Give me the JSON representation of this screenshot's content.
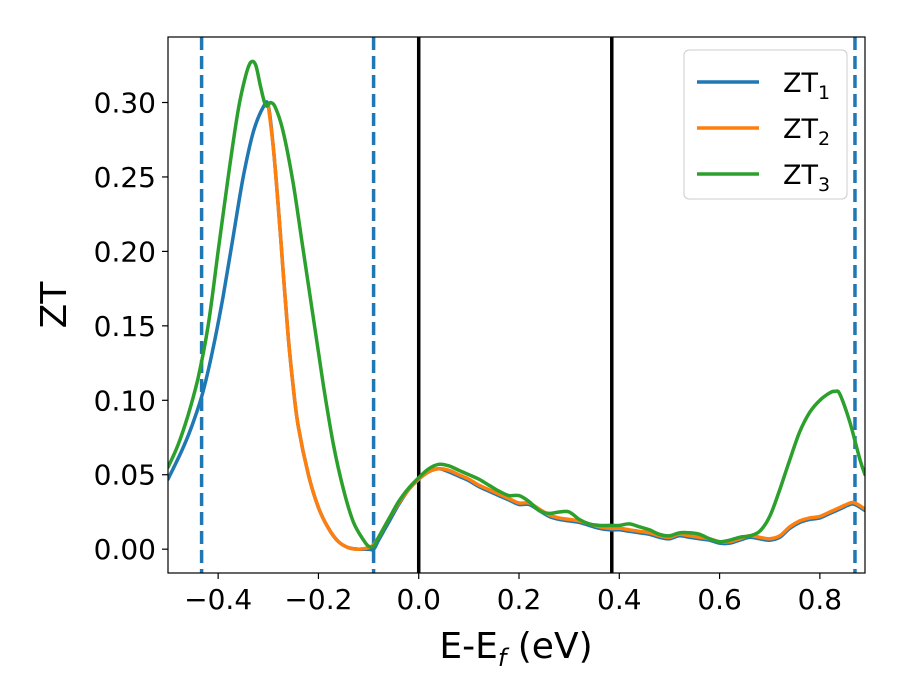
{
  "chart_data": {
    "type": "line",
    "title": "",
    "xlabel_main": "E-E",
    "xlabel_sub": "f",
    "xlabel_unit": " (eV)",
    "ylabel": "ZT",
    "xlim": [
      -0.5,
      0.89
    ],
    "ylim": [
      -0.016,
      0.344
    ],
    "xticks": [
      -0.4,
      -0.2,
      0.0,
      0.2,
      0.4,
      0.6,
      0.8
    ],
    "xtick_labels": [
      "−0.4",
      "−0.2",
      "0.0",
      "0.2",
      "0.4",
      "0.6",
      "0.8"
    ],
    "yticks": [
      0.0,
      0.05,
      0.1,
      0.15,
      0.2,
      0.25,
      0.3
    ],
    "ytick_labels": [
      "0.00",
      "0.05",
      "0.10",
      "0.15",
      "0.20",
      "0.25",
      "0.30"
    ],
    "grid": false,
    "legend_position": "top-right",
    "vlines_dashed": {
      "color": "#1f77b4",
      "x": [
        -0.433,
        -0.09,
        0.87
      ]
    },
    "vlines_solid": {
      "color": "#000000",
      "x": [
        0.0,
        0.385
      ]
    },
    "series": [
      {
        "name_main": "ZT",
        "name_sub": "1",
        "color": "#1f77b4",
        "points": [
          [
            -0.5,
            0.047
          ],
          [
            -0.47,
            0.068
          ],
          [
            -0.45,
            0.085
          ],
          [
            -0.43,
            0.106
          ],
          [
            -0.41,
            0.135
          ],
          [
            -0.39,
            0.17
          ],
          [
            -0.37,
            0.21
          ],
          [
            -0.35,
            0.25
          ],
          [
            -0.33,
            0.28
          ],
          [
            -0.31,
            0.297
          ],
          [
            -0.3,
            0.298
          ],
          [
            -0.29,
            0.27
          ],
          [
            -0.28,
            0.23
          ],
          [
            -0.27,
            0.185
          ],
          [
            -0.26,
            0.142
          ],
          [
            -0.25,
            0.108
          ],
          [
            -0.24,
            0.082
          ],
          [
            -0.22,
            0.05
          ],
          [
            -0.2,
            0.028
          ],
          [
            -0.18,
            0.014
          ],
          [
            -0.16,
            0.005
          ],
          [
            -0.14,
            0.001
          ],
          [
            -0.12,
            0.0
          ],
          [
            -0.1,
            0.0
          ],
          [
            -0.09,
            0.0
          ],
          [
            -0.08,
            0.006
          ],
          [
            -0.06,
            0.018
          ],
          [
            -0.04,
            0.03
          ],
          [
            -0.02,
            0.04
          ],
          [
            0.0,
            0.047
          ],
          [
            0.02,
            0.052
          ],
          [
            0.04,
            0.054
          ],
          [
            0.06,
            0.052
          ],
          [
            0.08,
            0.049
          ],
          [
            0.1,
            0.046
          ],
          [
            0.12,
            0.042
          ],
          [
            0.14,
            0.039
          ],
          [
            0.16,
            0.036
          ],
          [
            0.18,
            0.033
          ],
          [
            0.2,
            0.03
          ],
          [
            0.22,
            0.03
          ],
          [
            0.24,
            0.026
          ],
          [
            0.26,
            0.022
          ],
          [
            0.28,
            0.02
          ],
          [
            0.3,
            0.019
          ],
          [
            0.32,
            0.018
          ],
          [
            0.34,
            0.016
          ],
          [
            0.36,
            0.014
          ],
          [
            0.38,
            0.013
          ],
          [
            0.4,
            0.013
          ],
          [
            0.42,
            0.012
          ],
          [
            0.44,
            0.011
          ],
          [
            0.46,
            0.01
          ],
          [
            0.48,
            0.008
          ],
          [
            0.5,
            0.007
          ],
          [
            0.52,
            0.009
          ],
          [
            0.54,
            0.008
          ],
          [
            0.56,
            0.007
          ],
          [
            0.58,
            0.006
          ],
          [
            0.6,
            0.004
          ],
          [
            0.62,
            0.004
          ],
          [
            0.64,
            0.006
          ],
          [
            0.66,
            0.008
          ],
          [
            0.68,
            0.007
          ],
          [
            0.7,
            0.006
          ],
          [
            0.72,
            0.008
          ],
          [
            0.74,
            0.014
          ],
          [
            0.76,
            0.018
          ],
          [
            0.78,
            0.02
          ],
          [
            0.8,
            0.021
          ],
          [
            0.82,
            0.024
          ],
          [
            0.84,
            0.027
          ],
          [
            0.86,
            0.03
          ],
          [
            0.87,
            0.03
          ],
          [
            0.89,
            0.026
          ]
        ]
      },
      {
        "name_main": "ZT",
        "name_sub": "2",
        "color": "#ff7f0e",
        "points": [
          [
            -0.3,
            0.298
          ],
          [
            -0.29,
            0.27
          ],
          [
            -0.28,
            0.23
          ],
          [
            -0.27,
            0.185
          ],
          [
            -0.26,
            0.142
          ],
          [
            -0.25,
            0.108
          ],
          [
            -0.24,
            0.082
          ],
          [
            -0.22,
            0.05
          ],
          [
            -0.2,
            0.028
          ],
          [
            -0.18,
            0.014
          ],
          [
            -0.16,
            0.005
          ],
          [
            -0.14,
            0.001
          ],
          [
            -0.12,
            0.0
          ],
          [
            -0.1,
            0.001
          ],
          [
            -0.09,
            0.003
          ],
          [
            -0.08,
            0.008
          ],
          [
            -0.06,
            0.02
          ],
          [
            -0.04,
            0.031
          ],
          [
            -0.02,
            0.04
          ],
          [
            0.0,
            0.047
          ],
          [
            0.02,
            0.052
          ],
          [
            0.04,
            0.054
          ],
          [
            0.06,
            0.053
          ],
          [
            0.08,
            0.05
          ],
          [
            0.1,
            0.047
          ],
          [
            0.12,
            0.043
          ],
          [
            0.14,
            0.04
          ],
          [
            0.16,
            0.037
          ],
          [
            0.18,
            0.034
          ],
          [
            0.2,
            0.031
          ],
          [
            0.22,
            0.031
          ],
          [
            0.24,
            0.027
          ],
          [
            0.26,
            0.023
          ],
          [
            0.28,
            0.021
          ],
          [
            0.3,
            0.02
          ],
          [
            0.32,
            0.019
          ],
          [
            0.34,
            0.017
          ],
          [
            0.36,
            0.015
          ],
          [
            0.38,
            0.014
          ],
          [
            0.4,
            0.014
          ],
          [
            0.42,
            0.013
          ],
          [
            0.44,
            0.012
          ],
          [
            0.46,
            0.011
          ],
          [
            0.48,
            0.009
          ],
          [
            0.5,
            0.008
          ],
          [
            0.52,
            0.01
          ],
          [
            0.54,
            0.009
          ],
          [
            0.56,
            0.008
          ],
          [
            0.58,
            0.007
          ],
          [
            0.6,
            0.005
          ],
          [
            0.62,
            0.005
          ],
          [
            0.64,
            0.007
          ],
          [
            0.66,
            0.009
          ],
          [
            0.68,
            0.008
          ],
          [
            0.7,
            0.007
          ],
          [
            0.72,
            0.009
          ],
          [
            0.74,
            0.015
          ],
          [
            0.76,
            0.019
          ],
          [
            0.78,
            0.021
          ],
          [
            0.8,
            0.022
          ],
          [
            0.82,
            0.025
          ],
          [
            0.84,
            0.028
          ],
          [
            0.86,
            0.031
          ],
          [
            0.87,
            0.031
          ],
          [
            0.89,
            0.027
          ]
        ]
      },
      {
        "name_main": "ZT",
        "name_sub": "3",
        "color": "#2ca02c",
        "points": [
          [
            -0.5,
            0.055
          ],
          [
            -0.48,
            0.07
          ],
          [
            -0.46,
            0.09
          ],
          [
            -0.44,
            0.115
          ],
          [
            -0.42,
            0.15
          ],
          [
            -0.4,
            0.2
          ],
          [
            -0.38,
            0.25
          ],
          [
            -0.36,
            0.295
          ],
          [
            -0.345,
            0.318
          ],
          [
            -0.335,
            0.327
          ],
          [
            -0.325,
            0.325
          ],
          [
            -0.315,
            0.31
          ],
          [
            -0.305,
            0.298
          ],
          [
            -0.295,
            0.3
          ],
          [
            -0.285,
            0.296
          ],
          [
            -0.27,
            0.28
          ],
          [
            -0.25,
            0.245
          ],
          [
            -0.23,
            0.2
          ],
          [
            -0.21,
            0.155
          ],
          [
            -0.19,
            0.11
          ],
          [
            -0.17,
            0.07
          ],
          [
            -0.15,
            0.04
          ],
          [
            -0.13,
            0.018
          ],
          [
            -0.11,
            0.006
          ],
          [
            -0.1,
            0.002
          ],
          [
            -0.09,
            0.002
          ],
          [
            -0.08,
            0.008
          ],
          [
            -0.06,
            0.02
          ],
          [
            -0.04,
            0.032
          ],
          [
            -0.02,
            0.041
          ],
          [
            0.0,
            0.048
          ],
          [
            0.02,
            0.054
          ],
          [
            0.04,
            0.057
          ],
          [
            0.06,
            0.056
          ],
          [
            0.08,
            0.053
          ],
          [
            0.1,
            0.05
          ],
          [
            0.12,
            0.047
          ],
          [
            0.14,
            0.043
          ],
          [
            0.16,
            0.039
          ],
          [
            0.18,
            0.036
          ],
          [
            0.2,
            0.036
          ],
          [
            0.22,
            0.032
          ],
          [
            0.24,
            0.026
          ],
          [
            0.26,
            0.024
          ],
          [
            0.28,
            0.025
          ],
          [
            0.3,
            0.025
          ],
          [
            0.32,
            0.02
          ],
          [
            0.34,
            0.017
          ],
          [
            0.36,
            0.016
          ],
          [
            0.38,
            0.016
          ],
          [
            0.4,
            0.016
          ],
          [
            0.42,
            0.017
          ],
          [
            0.44,
            0.015
          ],
          [
            0.46,
            0.013
          ],
          [
            0.48,
            0.01
          ],
          [
            0.5,
            0.009
          ],
          [
            0.52,
            0.011
          ],
          [
            0.54,
            0.011
          ],
          [
            0.56,
            0.01
          ],
          [
            0.58,
            0.007
          ],
          [
            0.6,
            0.005
          ],
          [
            0.62,
            0.006
          ],
          [
            0.64,
            0.008
          ],
          [
            0.66,
            0.009
          ],
          [
            0.68,
            0.012
          ],
          [
            0.7,
            0.022
          ],
          [
            0.72,
            0.04
          ],
          [
            0.74,
            0.06
          ],
          [
            0.76,
            0.079
          ],
          [
            0.78,
            0.092
          ],
          [
            0.8,
            0.1
          ],
          [
            0.82,
            0.105
          ],
          [
            0.83,
            0.106
          ],
          [
            0.84,
            0.104
          ],
          [
            0.86,
            0.085
          ],
          [
            0.88,
            0.06
          ],
          [
            0.89,
            0.05
          ]
        ]
      }
    ]
  }
}
